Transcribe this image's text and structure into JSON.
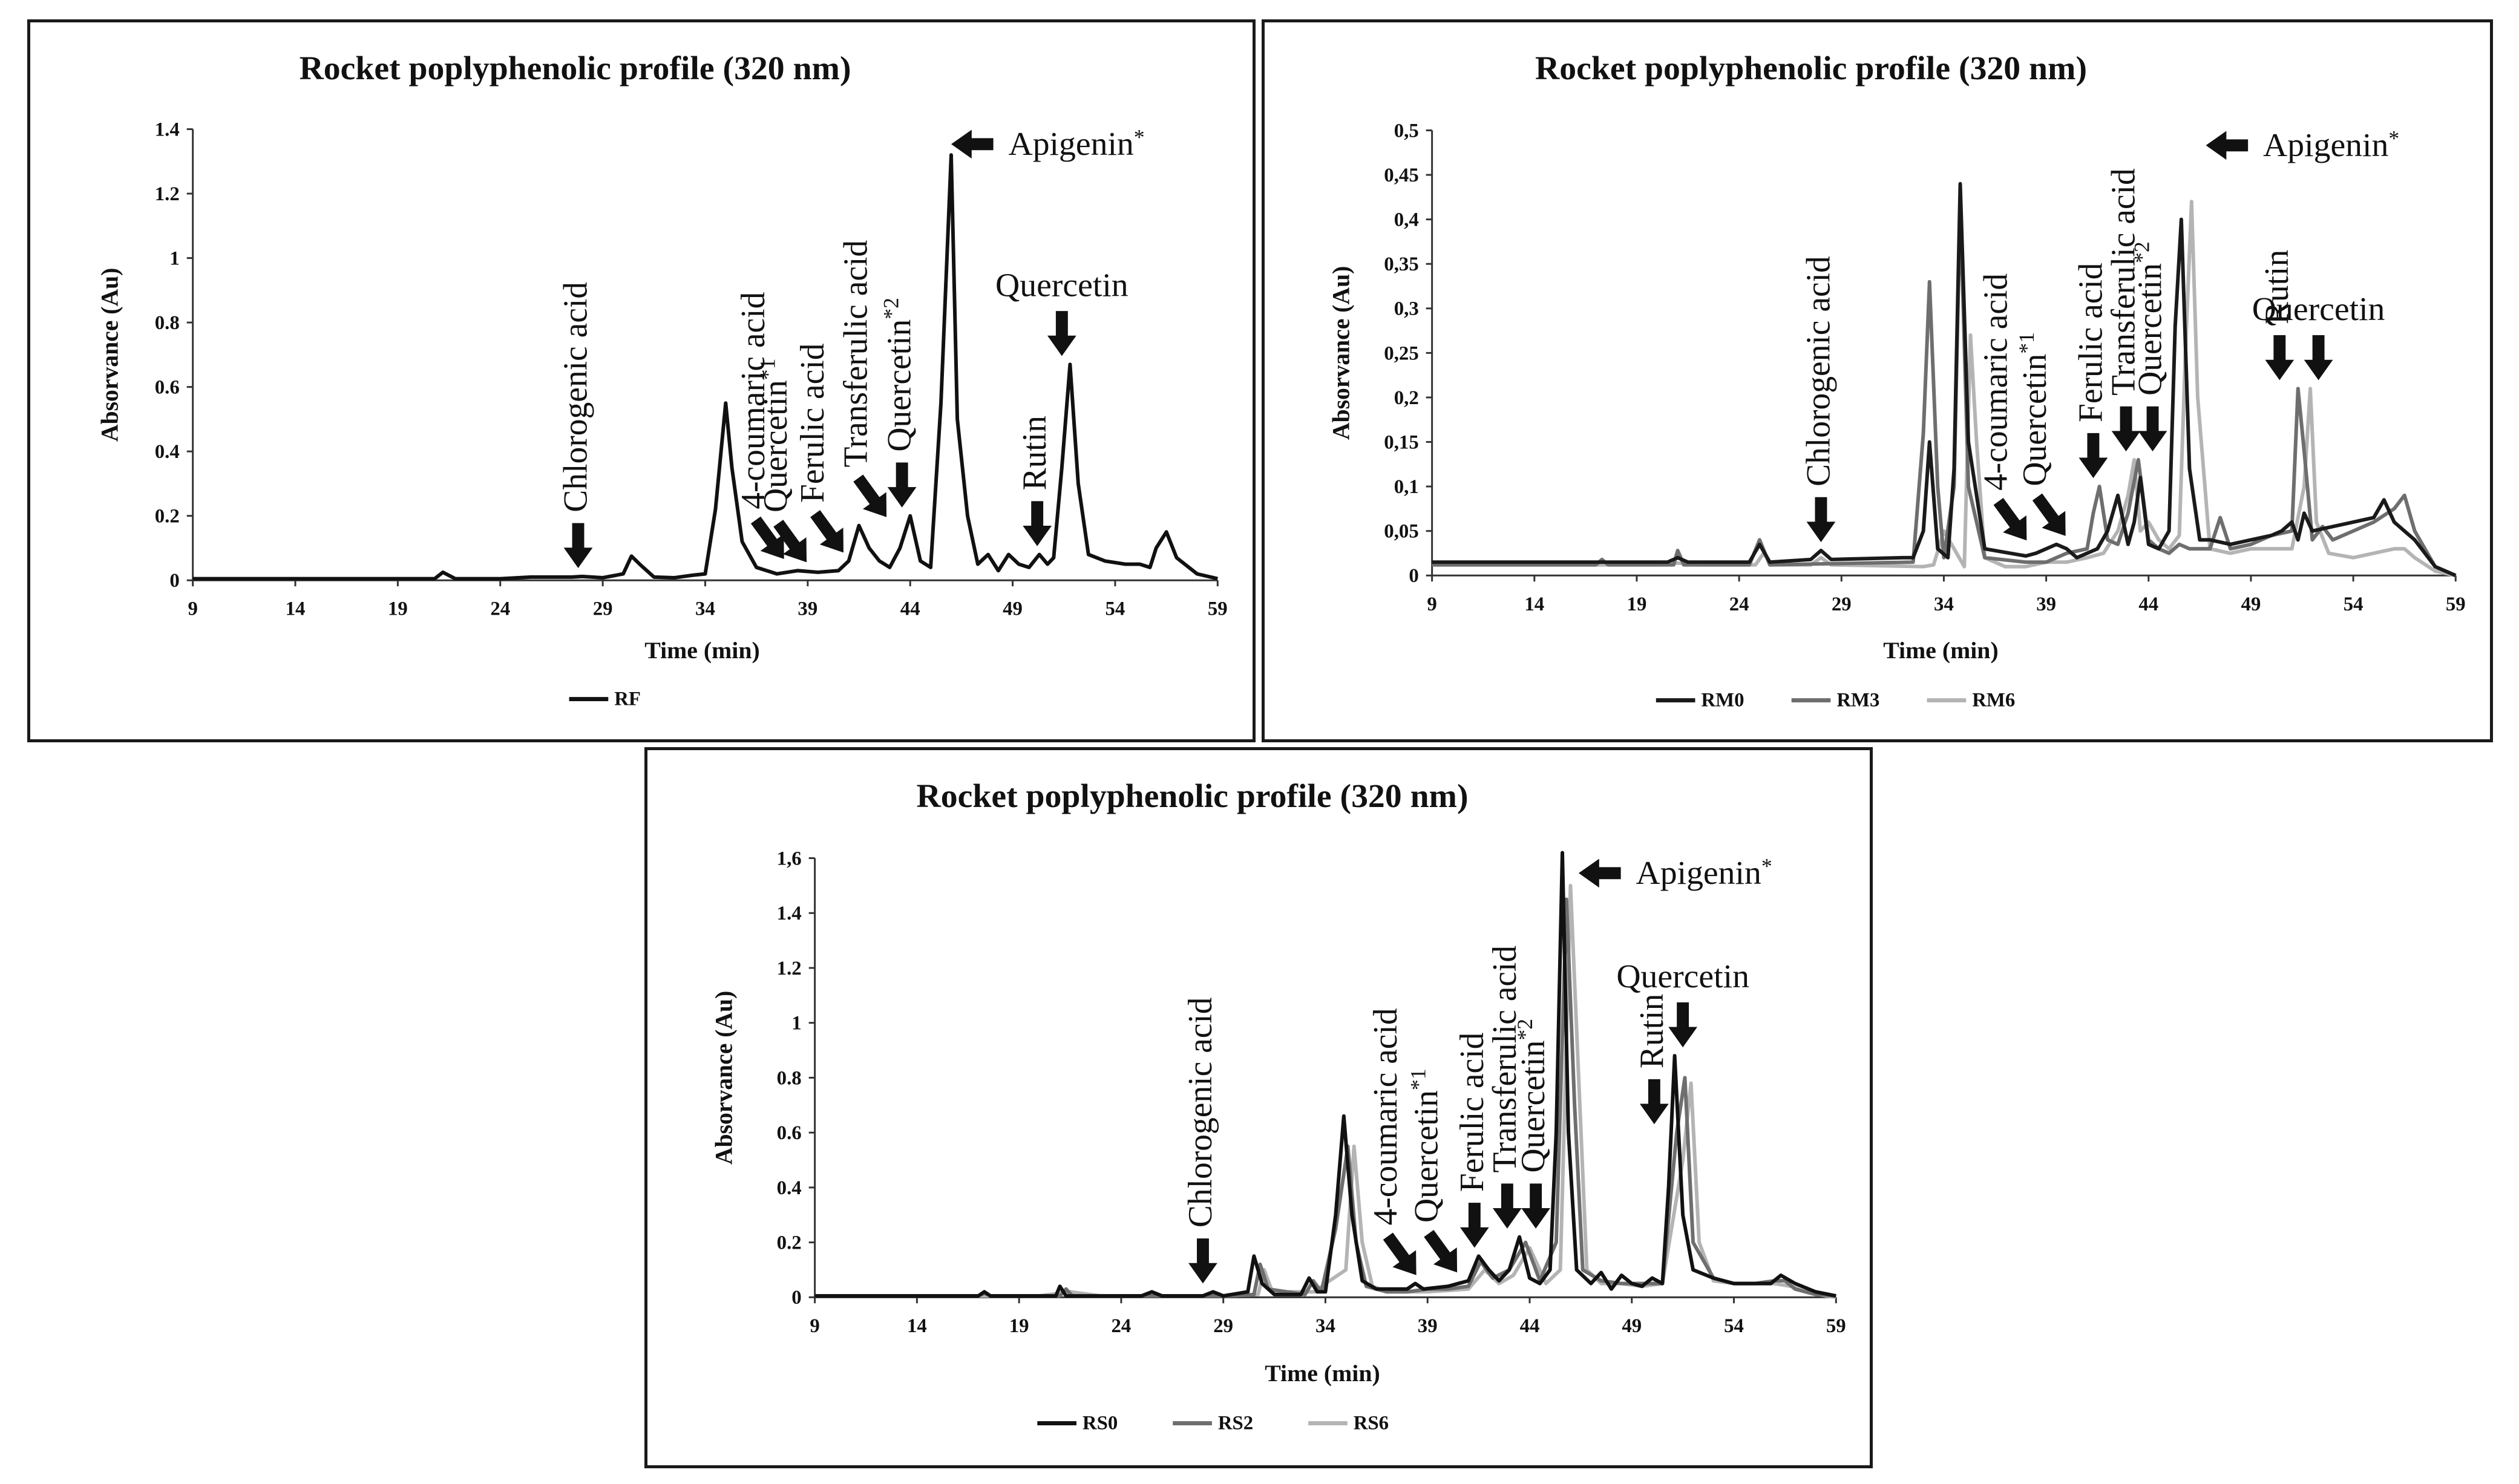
{
  "chart_data": [
    {
      "type": "line",
      "title": "Rocket poplyphenolic profile (320 nm)",
      "xlabel": "Time (min)",
      "ylabel": "Absorvance (Au)",
      "xlim": [
        9,
        59
      ],
      "ylim": [
        0,
        1.4
      ],
      "xticks": [
        "9",
        "14",
        "19",
        "24",
        "29",
        "34",
        "39",
        "44",
        "49",
        "54",
        "59"
      ],
      "yticks": [
        "0",
        "0.2",
        "0.4",
        "0.6",
        "0.8",
        "1",
        "1.2",
        "1.4"
      ],
      "legend_position": "bottom",
      "series": [
        {
          "name": "RF",
          "color": "#111111",
          "x": [
            9,
            12,
            16,
            19,
            20.8,
            21.2,
            21.8,
            24,
            25.5,
            26.5,
            27.5,
            28,
            29,
            30,
            30.4,
            30.8,
            31.5,
            32.5,
            33.3,
            34,
            34.5,
            35,
            35.3,
            35.8,
            36.5,
            37.5,
            38.5,
            39.5,
            40.5,
            41,
            41.5,
            42,
            42.5,
            43,
            43.5,
            44,
            44.5,
            45,
            45.5,
            46,
            46.3,
            46.8,
            47.3,
            47.8,
            48.3,
            48.8,
            49.3,
            49.8,
            50.3,
            50.7,
            51,
            51.4,
            51.8,
            52.2,
            52.7,
            53.5,
            54.5,
            55.2,
            55.7,
            56,
            56.5,
            57,
            58,
            59
          ],
          "y": [
            0.005,
            0.005,
            0.005,
            0.005,
            0.005,
            0.025,
            0.005,
            0.005,
            0.01,
            0.01,
            0.01,
            0.012,
            0.008,
            0.02,
            0.075,
            0.05,
            0.01,
            0.008,
            0.015,
            0.02,
            0.22,
            0.55,
            0.35,
            0.12,
            0.04,
            0.02,
            0.03,
            0.025,
            0.03,
            0.06,
            0.17,
            0.1,
            0.06,
            0.04,
            0.1,
            0.2,
            0.06,
            0.04,
            0.55,
            1.32,
            0.5,
            0.2,
            0.05,
            0.08,
            0.03,
            0.08,
            0.05,
            0.04,
            0.08,
            0.05,
            0.07,
            0.35,
            0.67,
            0.3,
            0.08,
            0.06,
            0.05,
            0.05,
            0.04,
            0.1,
            0.15,
            0.07,
            0.02,
            0.005
          ]
        }
      ],
      "annotations": [
        {
          "text": "Chlorogenic acid",
          "x": 27.8,
          "arrow": "down"
        },
        {
          "text": "4-coumaric acid",
          "x": 37.2,
          "arrow": "diag"
        },
        {
          "text": "Quercetin",
          "sup": "*1",
          "x": 38.3,
          "arrow": "diag"
        },
        {
          "text": "Ferulic acid",
          "x": 40.1,
          "arrow": "diag"
        },
        {
          "text": "Transferulic acid",
          "x": 42.2,
          "arrow": "diag"
        },
        {
          "text": "Quercetin",
          "sup": "*2",
          "x": 43.6,
          "arrow": "down"
        },
        {
          "text": "Rutin",
          "x": 50.2,
          "arrow": "down"
        },
        {
          "text": "Quercetin",
          "x": 51.4,
          "arrow": "down"
        },
        {
          "text": "Apigenin",
          "sup": "*",
          "x": 46.0,
          "arrow": "left"
        }
      ]
    },
    {
      "type": "line",
      "title": "Rocket poplyphenolic profile (320 nm)",
      "xlabel": "Time (min)",
      "ylabel": "Absorvance (Au)",
      "xlim": [
        9,
        59
      ],
      "ylim": [
        0,
        0.5
      ],
      "xticks": [
        "9",
        "14",
        "19",
        "24",
        "29",
        "34",
        "39",
        "44",
        "49",
        "54",
        "59"
      ],
      "yticks": [
        "0",
        "0,05",
        "0,1",
        "0,15",
        "0,2",
        "0,25",
        "0,3",
        "0,35",
        "0,4",
        "0,45",
        "0,5"
      ],
      "legend_position": "bottom",
      "series": [
        {
          "name": "RM0",
          "color": "#1a1a1a",
          "x": [
            9,
            16,
            17.3,
            17.5,
            17.8,
            20.5,
            21,
            21.5,
            24.5,
            25,
            25.5,
            27.5,
            28,
            28.5,
            32,
            32.5,
            33,
            33.3,
            33.7,
            34.2,
            34.5,
            34.8,
            35.2,
            36,
            38,
            38.5,
            39.5,
            40,
            40.5,
            41.5,
            42,
            42.5,
            43,
            43.3,
            43.6,
            44,
            44.5,
            45,
            45.3,
            45.6,
            46,
            46.5,
            47,
            48,
            49,
            50,
            50.5,
            51,
            51.3,
            51.6,
            52,
            53,
            54,
            55,
            55.5,
            56,
            56.5,
            57,
            58,
            59
          ],
          "y": [
            0.015,
            0.015,
            0.015,
            0.015,
            0.015,
            0.015,
            0.02,
            0.015,
            0.015,
            0.035,
            0.015,
            0.018,
            0.028,
            0.018,
            0.02,
            0.02,
            0.05,
            0.15,
            0.03,
            0.02,
            0.12,
            0.44,
            0.15,
            0.03,
            0.022,
            0.025,
            0.035,
            0.03,
            0.02,
            0.03,
            0.05,
            0.09,
            0.035,
            0.06,
            0.11,
            0.035,
            0.03,
            0.05,
            0.28,
            0.4,
            0.12,
            0.04,
            0.04,
            0.035,
            0.04,
            0.045,
            0.05,
            0.06,
            0.04,
            0.07,
            0.05,
            0.055,
            0.06,
            0.065,
            0.085,
            0.06,
            0.05,
            0.04,
            0.01,
            0
          ]
        },
        {
          "name": "RM3",
          "color": "#6e6e6e",
          "x": [
            9,
            17,
            17.3,
            17.6,
            20.8,
            21,
            21.3,
            24.5,
            25,
            25.5,
            32.5,
            33,
            33.3,
            33.7,
            34,
            34.5,
            34.8,
            35.2,
            36,
            38,
            39,
            40,
            41,
            41.3,
            41.6,
            42,
            42.5,
            43,
            43.5,
            44,
            44.5,
            45,
            45.5,
            46,
            47,
            47.5,
            48,
            49,
            50,
            51,
            51.3,
            51.6,
            52,
            52.5,
            53,
            54,
            55,
            56,
            56.5,
            57,
            58,
            59
          ],
          "y": [
            0.012,
            0.012,
            0.018,
            0.012,
            0.012,
            0.028,
            0.012,
            0.012,
            0.04,
            0.012,
            0.015,
            0.16,
            0.33,
            0.1,
            0.02,
            0.1,
            0.42,
            0.1,
            0.02,
            0.015,
            0.015,
            0.025,
            0.03,
            0.07,
            0.1,
            0.04,
            0.035,
            0.07,
            0.13,
            0.04,
            0.03,
            0.025,
            0.035,
            0.03,
            0.03,
            0.065,
            0.03,
            0.035,
            0.045,
            0.05,
            0.21,
            0.14,
            0.04,
            0.055,
            0.04,
            0.05,
            0.06,
            0.075,
            0.09,
            0.05,
            0.01,
            0
          ]
        },
        {
          "name": "RM6",
          "color": "#b4b4b4",
          "x": [
            9,
            20,
            21,
            22,
            24.8,
            25.2,
            25.6,
            27.5,
            28,
            28.5,
            33,
            33.5,
            34,
            34.5,
            35,
            35.3,
            35.6,
            36,
            37,
            38,
            39,
            40,
            41,
            41.8,
            42.5,
            43,
            43.3,
            43.6,
            44,
            44.5,
            45,
            45.5,
            45.8,
            46.1,
            46.4,
            47,
            48,
            49,
            50,
            51,
            51.6,
            51.9,
            52.2,
            52.8,
            54,
            55,
            56,
            56.5,
            57,
            58,
            59
          ],
          "y": [
            0.012,
            0.012,
            0.014,
            0.012,
            0.012,
            0.025,
            0.012,
            0.012,
            0.02,
            0.012,
            0.01,
            0.012,
            0.05,
            0.03,
            0.01,
            0.27,
            0.15,
            0.02,
            0.01,
            0.01,
            0.015,
            0.015,
            0.02,
            0.025,
            0.05,
            0.09,
            0.13,
            0.05,
            0.06,
            0.04,
            0.03,
            0.045,
            0.25,
            0.42,
            0.2,
            0.03,
            0.025,
            0.03,
            0.03,
            0.03,
            0.1,
            0.21,
            0.06,
            0.025,
            0.02,
            0.025,
            0.03,
            0.03,
            0.02,
            0.005,
            0
          ]
        }
      ],
      "annotations": [
        {
          "text": "Chlorogenic acid",
          "x": 28.0,
          "arrow": "down"
        },
        {
          "text": "4-coumaric acid",
          "x": 37.4,
          "arrow": "diag"
        },
        {
          "text": "Quercetin",
          "sup": "*1",
          "x": 39.3,
          "arrow": "diag"
        },
        {
          "text": "Ferulic acid",
          "x": 41.3,
          "arrow": "down"
        },
        {
          "text": "Transferulic acid",
          "x": 42.9,
          "arrow": "down"
        },
        {
          "text": "Quercetin",
          "sup": "*2",
          "x": 44.2,
          "arrow": "down"
        },
        {
          "text": "Rutin",
          "x": 50.4,
          "arrow": "down"
        },
        {
          "text": "Quercetin",
          "x": 52.3,
          "arrow": "down"
        },
        {
          "text": "Apigenin",
          "sup": "*",
          "x": 46.8,
          "arrow": "left"
        }
      ]
    },
    {
      "type": "line",
      "title": "Rocket poplyphenolic profile (320 nm)",
      "xlabel": "Time (min)",
      "ylabel": "Absorvance (Au)",
      "xlim": [
        9,
        59
      ],
      "ylim": [
        0,
        1.6
      ],
      "xticks": [
        "9",
        "14",
        "19",
        "24",
        "29",
        "34",
        "39",
        "44",
        "49",
        "54",
        "59"
      ],
      "yticks": [
        "0",
        "0.2",
        "0.4",
        "0.6",
        "0.8",
        "1",
        "1.2",
        "1.4",
        "1,6"
      ],
      "legend_position": "bottom",
      "series": [
        {
          "name": "RS0",
          "color": "#111111",
          "x": [
            9,
            17,
            17.3,
            17.6,
            20.8,
            21,
            21.3,
            25,
            25.5,
            26,
            28,
            28.5,
            29,
            30.2,
            30.5,
            30.9,
            31.5,
            32.8,
            33.2,
            33.6,
            34,
            34.5,
            34.9,
            35.3,
            35.8,
            36.5,
            38,
            38.4,
            38.8,
            40,
            41,
            41.5,
            42,
            42.5,
            43,
            43.5,
            44,
            44.5,
            45,
            45.3,
            45.6,
            45.9,
            46.3,
            47,
            47.5,
            48,
            48.5,
            49,
            49.5,
            50,
            50.5,
            50.8,
            51.1,
            51.5,
            52,
            53,
            54,
            55,
            55.8,
            56.3,
            57,
            58,
            59
          ],
          "y": [
            0.005,
            0.005,
            0.02,
            0.005,
            0.005,
            0.04,
            0.005,
            0.005,
            0.02,
            0.005,
            0.005,
            0.02,
            0.005,
            0.02,
            0.15,
            0.05,
            0.01,
            0.01,
            0.07,
            0.02,
            0.02,
            0.3,
            0.66,
            0.3,
            0.06,
            0.03,
            0.03,
            0.05,
            0.03,
            0.04,
            0.06,
            0.15,
            0.1,
            0.06,
            0.1,
            0.22,
            0.07,
            0.05,
            0.1,
            0.6,
            1.62,
            0.6,
            0.1,
            0.05,
            0.09,
            0.03,
            0.08,
            0.05,
            0.04,
            0.07,
            0.05,
            0.4,
            0.88,
            0.3,
            0.1,
            0.07,
            0.05,
            0.05,
            0.05,
            0.08,
            0.05,
            0.02,
            0.005
          ]
        },
        {
          "name": "RS2",
          "color": "#6e6e6e",
          "x": [
            9,
            17,
            17.3,
            17.6,
            21,
            21.3,
            21.6,
            29,
            30.5,
            30.8,
            31.2,
            33,
            33.4,
            33.8,
            34.5,
            35.1,
            35.5,
            36,
            37,
            38,
            39,
            40,
            41,
            41.6,
            42.2,
            43,
            43.8,
            44.5,
            45.3,
            45.8,
            46.2,
            46.6,
            47.5,
            48.5,
            49.5,
            50.5,
            51.2,
            51.6,
            52,
            53,
            54,
            55,
            56,
            56.5,
            57,
            58,
            59
          ],
          "y": [
            0.005,
            0.005,
            0.015,
            0.005,
            0.005,
            0.03,
            0.005,
            0.005,
            0.01,
            0.12,
            0.03,
            0.01,
            0.06,
            0.02,
            0.25,
            0.55,
            0.2,
            0.04,
            0.02,
            0.02,
            0.03,
            0.03,
            0.04,
            0.13,
            0.07,
            0.1,
            0.2,
            0.06,
            0.2,
            1.45,
            0.7,
            0.1,
            0.06,
            0.05,
            0.05,
            0.05,
            0.6,
            0.8,
            0.2,
            0.07,
            0.05,
            0.05,
            0.06,
            0.06,
            0.03,
            0.01,
            0.005
          ]
        },
        {
          "name": "RS6",
          "color": "#b4b4b4",
          "x": [
            9,
            20,
            21.5,
            23,
            29,
            30.7,
            31,
            31.4,
            33.5,
            34,
            35,
            35.4,
            35.8,
            36.3,
            37,
            38,
            39,
            40,
            41,
            41.8,
            42.5,
            43.2,
            44,
            44.8,
            45.5,
            46,
            46.4,
            46.8,
            47.5,
            48.5,
            49.5,
            50.5,
            51.5,
            51.9,
            52.3,
            53,
            54,
            55,
            56,
            56.8,
            57.5,
            58.5,
            59
          ],
          "y": [
            0.005,
            0.005,
            0.02,
            0.005,
            0.005,
            0.01,
            0.1,
            0.02,
            0.02,
            0.05,
            0.1,
            0.55,
            0.2,
            0.04,
            0.02,
            0.02,
            0.02,
            0.025,
            0.03,
            0.1,
            0.05,
            0.08,
            0.18,
            0.05,
            0.1,
            1.5,
            0.8,
            0.1,
            0.05,
            0.05,
            0.04,
            0.05,
            0.5,
            0.78,
            0.2,
            0.06,
            0.05,
            0.05,
            0.05,
            0.04,
            0.02,
            0.005,
            0
          ]
        }
      ],
      "annotations": [
        {
          "text": "Chlorogenic acid",
          "x": 28.0,
          "arrow": "down"
        },
        {
          "text": "4-coumaric acid",
          "x": 37.8,
          "arrow": "diag"
        },
        {
          "text": "Quercetin",
          "sup": "*1",
          "x": 39.8,
          "arrow": "diag"
        },
        {
          "text": "Ferulic acid",
          "x": 41.3,
          "arrow": "down"
        },
        {
          "text": "Transferulic acid",
          "x": 42.9,
          "arrow": "down"
        },
        {
          "text": "Quercetin",
          "sup": "*2",
          "x": 44.3,
          "arrow": "down"
        },
        {
          "text": "Rutin",
          "x": 50.1,
          "arrow": "down"
        },
        {
          "text": "Quercetin",
          "x": 51.5,
          "arrow": "down"
        },
        {
          "text": "Apigenin",
          "sup": "*",
          "x": 46.4,
          "arrow": "left"
        }
      ]
    }
  ]
}
